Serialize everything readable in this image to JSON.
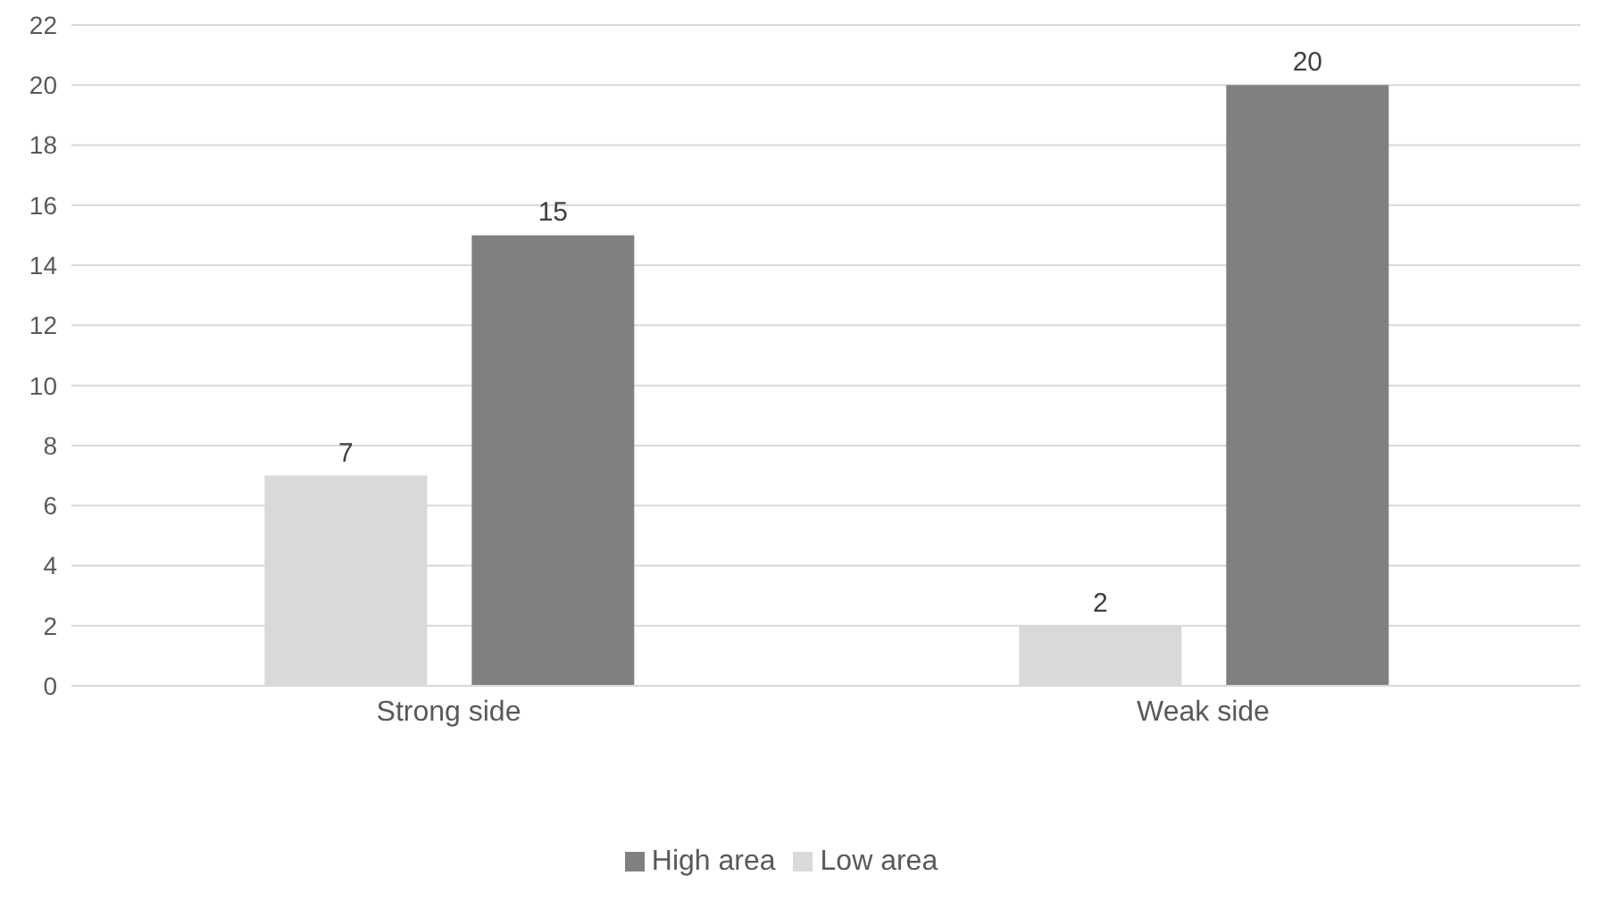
{
  "chart_data": {
    "type": "bar",
    "categories": [
      "Strong side",
      "Weak side"
    ],
    "series": [
      {
        "name": "Low area",
        "color": "#d9d9d9",
        "values": [
          7,
          2
        ]
      },
      {
        "name": "High area",
        "color": "#808080",
        "values": [
          15,
          20
        ]
      }
    ],
    "ylim": [
      0,
      22
    ],
    "yticks": [
      0,
      2,
      4,
      6,
      8,
      10,
      12,
      14,
      16,
      18,
      20,
      22
    ],
    "grid": "y",
    "legend": "bottom",
    "data_labels": true
  }
}
